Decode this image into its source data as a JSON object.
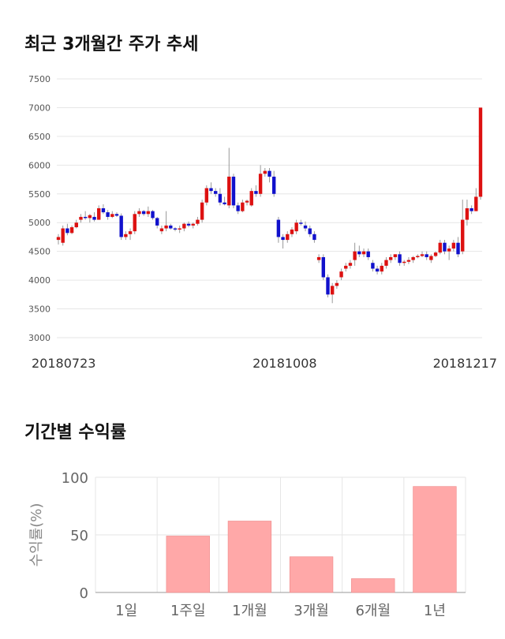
{
  "sections": {
    "price_trend_title": "최근 3개월간 주가 추세",
    "returns_title": "기간별 수익률"
  },
  "colors": {
    "up": "#dd1111",
    "down": "#1111cc",
    "bar": "#ffa8a8",
    "grid": "#e6e6e6"
  },
  "chart_data": [
    {
      "type": "candlestick",
      "title": "최근 3개월간 주가 추세",
      "ylim": [
        3000,
        7500
      ],
      "yticks": [
        3000,
        3500,
        4000,
        4500,
        5000,
        5500,
        6000,
        6500,
        7000,
        7500
      ],
      "x_labels": [
        "20180723",
        "20181008",
        "20181217"
      ],
      "grid": "horizontal",
      "candles": [
        [
          4700,
          4800,
          4620,
          4750
        ],
        [
          4650,
          4950,
          4600,
          4900
        ],
        [
          4900,
          4980,
          4780,
          4820
        ],
        [
          4820,
          4950,
          4800,
          4920
        ],
        [
          4920,
          5050,
          4900,
          5000
        ],
        [
          5050,
          5150,
          5000,
          5100
        ],
        [
          5100,
          5200,
          5050,
          5080
        ],
        [
          5080,
          5150,
          5000,
          5130
        ],
        [
          5100,
          5180,
          5020,
          5050
        ],
        [
          5050,
          5300,
          5050,
          5250
        ],
        [
          5250,
          5320,
          5150,
          5180
        ],
        [
          5180,
          5220,
          5050,
          5100
        ],
        [
          5100,
          5200,
          5080,
          5150
        ],
        [
          5150,
          5180,
          5100,
          5120
        ],
        [
          5120,
          5160,
          4700,
          4750
        ],
        [
          4750,
          4850,
          4700,
          4800
        ],
        [
          4800,
          4900,
          4700,
          4850
        ],
        [
          4850,
          5200,
          4800,
          5150
        ],
        [
          5150,
          5250,
          5100,
          5200
        ],
        [
          5200,
          5220,
          5120,
          5150
        ],
        [
          5150,
          5280,
          5100,
          5200
        ],
        [
          5200,
          5220,
          5050,
          5080
        ],
        [
          5080,
          5100,
          4900,
          4950
        ],
        [
          4850,
          4950,
          4800,
          4900
        ],
        [
          4900,
          5200,
          4850,
          4950
        ],
        [
          4950,
          4980,
          4880,
          4900
        ],
        [
          4900,
          4920,
          4850,
          4880
        ],
        [
          4880,
          4950,
          4820,
          4900
        ],
        [
          4900,
          5000,
          4850,
          4980
        ],
        [
          4980,
          5020,
          4920,
          4950
        ],
        [
          4950,
          5000,
          4900,
          4980
        ],
        [
          4980,
          5100,
          4950,
          5050
        ],
        [
          5050,
          5400,
          5000,
          5350
        ],
        [
          5350,
          5650,
          5300,
          5600
        ],
        [
          5600,
          5700,
          5500,
          5550
        ],
        [
          5550,
          5600,
          5450,
          5500
        ],
        [
          5500,
          5600,
          5300,
          5350
        ],
        [
          5350,
          5450,
          5300,
          5320
        ],
        [
          5300,
          6300,
          5250,
          5800
        ],
        [
          5800,
          5850,
          5250,
          5300
        ],
        [
          5300,
          5350,
          5150,
          5200
        ],
        [
          5200,
          5400,
          5180,
          5350
        ],
        [
          5350,
          5400,
          5300,
          5380
        ],
        [
          5300,
          5600,
          5280,
          5550
        ],
        [
          5550,
          5650,
          5450,
          5500
        ],
        [
          5500,
          6000,
          5450,
          5850
        ],
        [
          5850,
          5950,
          5800,
          5900
        ],
        [
          5900,
          5950,
          5700,
          5800
        ],
        [
          5800,
          5900,
          5450,
          5500
        ],
        [
          5050,
          5100,
          4650,
          4750
        ],
        [
          4750,
          4800,
          4550,
          4700
        ],
        [
          4700,
          4850,
          4650,
          4800
        ],
        [
          4800,
          4920,
          4750,
          4880
        ],
        [
          4850,
          5050,
          4800,
          5000
        ],
        [
          5000,
          5050,
          4950,
          4980
        ],
        [
          4950,
          5020,
          4850,
          4900
        ],
        [
          4900,
          4950,
          4750,
          4800
        ],
        [
          4800,
          4850,
          4650,
          4700
        ],
        [
          4350,
          4450,
          4300,
          4400
        ],
        [
          4400,
          4450,
          4000,
          4050
        ],
        [
          4050,
          4100,
          3700,
          3750
        ],
        [
          3750,
          3950,
          3600,
          3900
        ],
        [
          3900,
          4000,
          3850,
          3950
        ],
        [
          4050,
          4200,
          4000,
          4150
        ],
        [
          4200,
          4300,
          4150,
          4250
        ],
        [
          4250,
          4350,
          4200,
          4300
        ],
        [
          4350,
          4650,
          4250,
          4500
        ],
        [
          4500,
          4600,
          4400,
          4450
        ],
        [
          4450,
          4550,
          4400,
          4500
        ],
        [
          4500,
          4550,
          4350,
          4400
        ],
        [
          4300,
          4350,
          4150,
          4200
        ],
        [
          4200,
          4250,
          4100,
          4150
        ],
        [
          4150,
          4300,
          4100,
          4250
        ],
        [
          4250,
          4400,
          4200,
          4350
        ],
        [
          4350,
          4450,
          4300,
          4400
        ],
        [
          4400,
          4450,
          4350,
          4450
        ],
        [
          4450,
          4500,
          4250,
          4300
        ],
        [
          4300,
          4350,
          4250,
          4320
        ],
        [
          4320,
          4400,
          4280,
          4350
        ],
        [
          4350,
          4420,
          4300,
          4400
        ],
        [
          4400,
          4450,
          4380,
          4420
        ],
        [
          4420,
          4500,
          4400,
          4450
        ],
        [
          4450,
          4500,
          4350,
          4400
        ],
        [
          4350,
          4450,
          4300,
          4420
        ],
        [
          4420,
          4500,
          4400,
          4480
        ],
        [
          4480,
          4700,
          4450,
          4650
        ],
        [
          4650,
          4700,
          4450,
          4500
        ],
        [
          4500,
          4600,
          4350,
          4550
        ],
        [
          4550,
          4700,
          4500,
          4650
        ],
        [
          4650,
          4750,
          4400,
          4450
        ],
        [
          4500,
          5400,
          4450,
          5050
        ],
        [
          5050,
          5400,
          4950,
          5250
        ],
        [
          5250,
          5300,
          5150,
          5200
        ],
        [
          5200,
          5600,
          5200,
          5450
        ],
        [
          5450,
          7000,
          5400,
          7000
        ]
      ]
    },
    {
      "type": "bar",
      "title": "기간별 수익률",
      "ylabel": "수익률(%)",
      "ylim": [
        0,
        100
      ],
      "yticks": [
        0,
        50,
        100
      ],
      "categories": [
        "1일",
        "1주일",
        "1개월",
        "3개월",
        "6개월",
        "1년"
      ],
      "values": [
        0,
        49,
        62,
        31,
        12,
        92
      ]
    }
  ]
}
